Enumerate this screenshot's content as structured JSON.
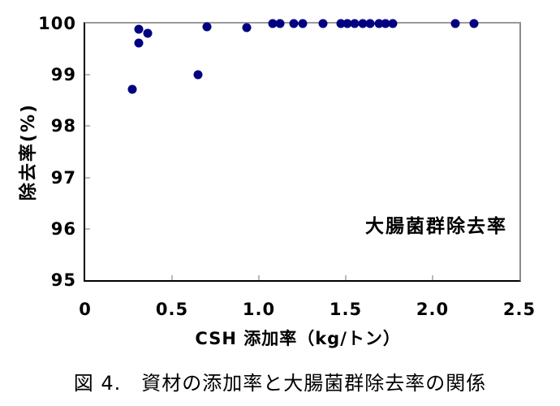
{
  "figure": {
    "caption": "図 4.　資材の添加率と大腸菌群除去率の関係"
  },
  "chart_data": {
    "type": "scatter",
    "title": "",
    "xlabel": "CSH 添加率（kg/トン）",
    "ylabel": "除去率(%)",
    "annotation": "大腸菌群除去率",
    "xlim": [
      0,
      2.5
    ],
    "ylim": [
      95,
      100
    ],
    "x_ticks": [
      0,
      0.5,
      1.0,
      1.5,
      2.0,
      2.5
    ],
    "x_tick_labels": [
      "0",
      "0.5",
      "1.0",
      "1.5",
      "2.0",
      "2.5"
    ],
    "y_ticks": [
      95,
      96,
      97,
      98,
      99,
      100
    ],
    "grid": "off",
    "legend": "none",
    "marker_color": "#000080",
    "points": [
      [
        0.27,
        98.72
      ],
      [
        0.31,
        99.62
      ],
      [
        0.31,
        99.89
      ],
      [
        0.36,
        99.81
      ],
      [
        0.65,
        99.0
      ],
      [
        0.7,
        99.94
      ],
      [
        0.93,
        99.92
      ],
      [
        1.08,
        100.0
      ],
      [
        1.12,
        100.0
      ],
      [
        1.2,
        100.0
      ],
      [
        1.25,
        100.0
      ],
      [
        1.37,
        100.0
      ],
      [
        1.47,
        100.0
      ],
      [
        1.51,
        100.0
      ],
      [
        1.55,
        100.0
      ],
      [
        1.6,
        100.0
      ],
      [
        1.64,
        100.0
      ],
      [
        1.69,
        100.0
      ],
      [
        1.73,
        100.0
      ],
      [
        1.77,
        100.0
      ],
      [
        2.13,
        100.0
      ],
      [
        2.24,
        100.0
      ]
    ]
  }
}
